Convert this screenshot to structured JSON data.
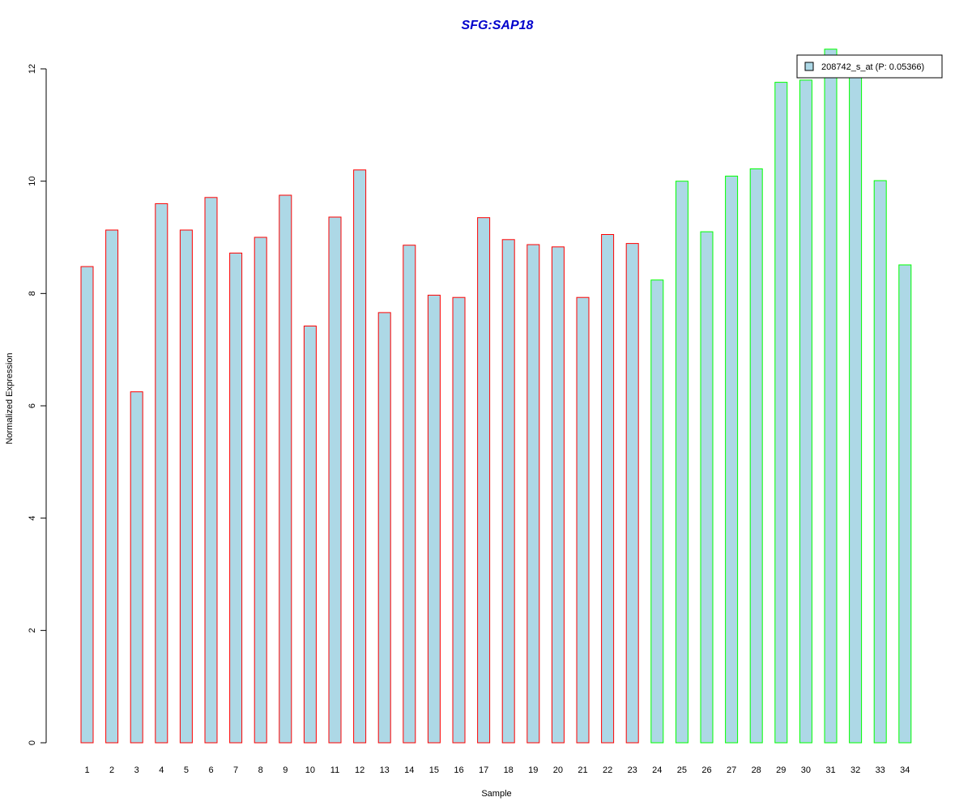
{
  "chart_data": {
    "type": "bar",
    "title": "SFG:SAP18",
    "xlabel": "Sample",
    "ylabel": "Normalized Expression",
    "ylim": [
      0,
      12
    ],
    "yticks": [
      0,
      2,
      4,
      6,
      8,
      10,
      12
    ],
    "categories": [
      "1",
      "2",
      "3",
      "4",
      "5",
      "6",
      "7",
      "8",
      "9",
      "10",
      "11",
      "12",
      "13",
      "14",
      "15",
      "16",
      "17",
      "18",
      "19",
      "20",
      "21",
      "22",
      "23",
      "24",
      "25",
      "26",
      "27",
      "28",
      "29",
      "30",
      "31",
      "32",
      "33",
      "34"
    ],
    "series": [
      {
        "name": "208742_s_at (P: 0.05366)",
        "values": [
          8.48,
          9.13,
          6.25,
          9.6,
          9.13,
          9.71,
          8.72,
          9.0,
          9.75,
          7.42,
          9.36,
          10.2,
          7.66,
          8.86,
          7.97,
          7.93,
          9.35,
          8.96,
          8.87,
          8.83,
          7.93,
          9.05,
          8.89,
          8.24,
          10.0,
          9.1,
          10.09,
          10.22,
          11.76,
          11.8,
          12.35,
          11.95,
          10.01,
          8.51
        ],
        "border_colors": [
          "#ff0000",
          "#ff0000",
          "#ff0000",
          "#ff0000",
          "#ff0000",
          "#ff0000",
          "#ff0000",
          "#ff0000",
          "#ff0000",
          "#ff0000",
          "#ff0000",
          "#ff0000",
          "#ff0000",
          "#ff0000",
          "#ff0000",
          "#ff0000",
          "#ff0000",
          "#ff0000",
          "#ff0000",
          "#ff0000",
          "#ff0000",
          "#ff0000",
          "#ff0000",
          "#00ff00",
          "#00ff00",
          "#00ff00",
          "#00ff00",
          "#00ff00",
          "#00ff00",
          "#00ff00",
          "#00ff00",
          "#00ff00",
          "#00ff00",
          "#00ff00"
        ]
      }
    ],
    "fill_color": "#add8e6",
    "title_color": "#0000cc",
    "grid": false,
    "legend_position": "top-right"
  }
}
